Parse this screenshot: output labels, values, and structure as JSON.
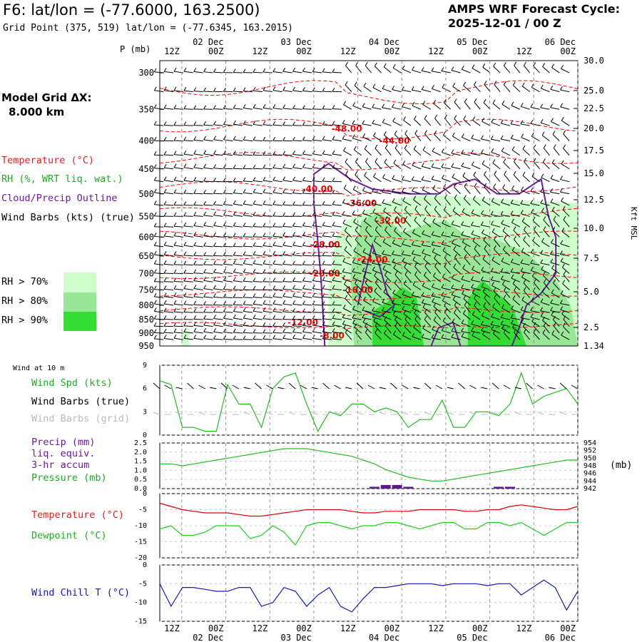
{
  "header": {
    "title": "F6:  lat/lon = (-77.6000, 163.2500)",
    "subtitle": "Grid Point (375, 519) lat/lon = (-77.6345, 163.2015)",
    "cycle_line1": "AMPS WRF Forecast Cycle:",
    "cycle_line2": "2025-12-01 / 00  Z"
  },
  "model_grid": {
    "label": "Model Grid ΔX:",
    "value": "8.000 km"
  },
  "legend": {
    "temperature": "Temperature (°C)",
    "rh": "RH (%, WRT liq. wat.)",
    "cloud": "Cloud/Precip Outline",
    "wind": "Wind Barbs (kts) (true)",
    "rh70": "RH > 70%",
    "rh80": "RH > 80%",
    "rh90": "RH > 90%"
  },
  "time_axis": {
    "top_hours": [
      "12Z",
      "00Z",
      "12Z",
      "00Z",
      "12Z",
      "00Z",
      "12Z",
      "00Z",
      "12Z",
      "00Z"
    ],
    "top_dates": [
      "02 Dec",
      "03 Dec",
      "04 Dec",
      "05 Dec",
      "06 Dec"
    ],
    "bottom_hours": [
      "12Z",
      "00Z",
      "12Z",
      "00Z",
      "12Z",
      "00Z",
      "12Z",
      "00Z",
      "12Z",
      "00Z"
    ],
    "bottom_dates": [
      "02 Dec",
      "03 Dec",
      "04 Dec",
      "05 Dec",
      "06 Dec"
    ]
  },
  "colors": {
    "temperature": "#ff0000",
    "rh70": "#ccffcc",
    "rh80": "#99e699",
    "rh90": "#33dd33",
    "cloud": "#6a1b9a",
    "wind_speed": "#22bb22",
    "precip": "#5b1a8a",
    "pressure": "#22bb22",
    "temp_line": "#dd0000",
    "dewpoint": "#22cc22",
    "wind_chill": "#1a1aaa",
    "grid_barbs": "#bbbbbb"
  },
  "chart_data": [
    {
      "type": "heatmap",
      "title": "",
      "ylabel": "P (mb)",
      "y2label": "Kft MSL",
      "y_ticks": [
        "300",
        "350",
        "400",
        "450",
        "500",
        "550",
        "600",
        "650",
        "700",
        "750",
        "800",
        "850",
        "900",
        "950"
      ],
      "y2_ticks": [
        "30.0",
        "25.0",
        "22.5",
        "20.0",
        "17.5",
        "15.0",
        "12.5",
        "10.0",
        "7.5",
        "5.0",
        "2.5",
        "1.34"
      ],
      "ylim": [
        950,
        285
      ],
      "x_hours_start": "2025-12-01 06Z",
      "x_hours_end": "2025-12-06 00Z",
      "temperature_contour_labels": [
        "-48.00",
        "-44.00",
        "-40.00",
        "-36.00",
        "-32.00",
        "-28.00",
        "-24.00",
        "-20.00",
        "-16.00",
        "-12.00",
        "-8.00"
      ],
      "temperature_contour_levels": [
        -48,
        -44,
        -40,
        -36,
        -32,
        -28,
        -24,
        -20,
        -16,
        -12,
        -8
      ]
    },
    {
      "type": "line",
      "title": "Wind at 10 m",
      "series": [
        {
          "name": "Wind Spd (kts)",
          "values": [
            7,
            6.5,
            1,
            1,
            0.5,
            0.5,
            6.5,
            4,
            4,
            1,
            6,
            7.5,
            8,
            4,
            0.5,
            3,
            2.5,
            4,
            4,
            3,
            3.5,
            3,
            1,
            2,
            2,
            4.5,
            1,
            1,
            3,
            3,
            2.5,
            4,
            8,
            4,
            5,
            5.5,
            6,
            4
          ]
        }
      ],
      "legend": [
        "Wind Spd (kts)",
        "Wind Barbs (true)",
        "Wind Barbs (grid)"
      ],
      "ylim": [
        0,
        9
      ],
      "y_ticks": [
        "0",
        "3",
        "6",
        "9"
      ]
    },
    {
      "type": "line",
      "series": [
        {
          "name": "Pressure (mb)",
          "values": [
            948.5,
            948.5,
            948,
            948.5,
            949,
            949.5,
            950,
            950.5,
            951,
            951.5,
            952,
            952.5,
            952.5,
            952.5,
            952,
            951.5,
            951,
            950.5,
            949.5,
            948.5,
            947,
            946,
            945,
            944.5,
            944,
            944,
            944.5,
            945,
            945.5,
            946,
            946.5,
            947,
            947.5,
            948,
            948.5,
            949,
            949.5,
            949.5
          ]
        },
        {
          "name": "Precip (mm) liq. equiv. 3-hr accum",
          "values": [
            0,
            0,
            0,
            0,
            0,
            0,
            0,
            0,
            0,
            0,
            0,
            0,
            0,
            0,
            0,
            0,
            0,
            0,
            0,
            0.1,
            0.2,
            0.2,
            0.1,
            0,
            0,
            0,
            0,
            0,
            0,
            0,
            0.1,
            0.1,
            0,
            0,
            0,
            0,
            0,
            0
          ]
        }
      ],
      "legend": [
        "Precip (mm)",
        "liq. equiv.",
        "3-hr accum",
        "Pressure (mb)"
      ],
      "y_ticks_left": [
        "0.0",
        "0.5",
        "1.0",
        "1.5",
        "2.0",
        "2.5"
      ],
      "y_ticks_right": [
        "942",
        "944",
        "946",
        "948",
        "950",
        "952",
        "954"
      ],
      "y2label": "(mb)",
      "ylim": [
        0,
        2.5
      ],
      "y2lim": [
        942,
        954
      ]
    },
    {
      "type": "line",
      "series": [
        {
          "name": "Temperature (°C)",
          "values": [
            -3,
            -4,
            -5,
            -5.5,
            -6,
            -6,
            -6,
            -6.5,
            -7,
            -7,
            -6.5,
            -6,
            -5.5,
            -5,
            -5,
            -5,
            -5,
            -5.5,
            -6,
            -6,
            -5.5,
            -5.5,
            -5.5,
            -5,
            -5,
            -5,
            -5,
            -5.5,
            -5.5,
            -5,
            -5,
            -4,
            -3.5,
            -4,
            -4.5,
            -5,
            -5,
            -4
          ]
        },
        {
          "name": "Dewpoint (°C)",
          "values": [
            -11,
            -10,
            -13,
            -13,
            -12,
            -10,
            -10,
            -10,
            -14,
            -13,
            -10,
            -12,
            -16,
            -10,
            -9,
            -9,
            -10,
            -11,
            -10,
            -10,
            -9,
            -9,
            -10,
            -11,
            -10,
            -9,
            -9,
            -11,
            -11,
            -9,
            -9,
            -10,
            -9,
            -11,
            -13,
            -11,
            -9,
            -9
          ]
        }
      ],
      "legend": [
        "Temperature (°C)",
        "Dewpoint (°C)"
      ],
      "ylim": [
        -20,
        0
      ],
      "y_ticks": [
        "0",
        "-5",
        "-10",
        "-15",
        "-20"
      ]
    },
    {
      "type": "line",
      "series": [
        {
          "name": "Wind Chill T (°C)",
          "values": [
            -5,
            -11,
            -6,
            -6,
            -6.5,
            -7,
            -7,
            -6,
            -6,
            -11,
            -10,
            -6,
            -7,
            -11,
            -8,
            -6,
            -11,
            -12.5,
            -9,
            -6,
            -6,
            -5.5,
            -5,
            -5,
            -5,
            -5.5,
            -5,
            -5,
            -5,
            -5.5,
            -5,
            -5,
            -8,
            -6,
            -4,
            -6,
            -12,
            -7
          ]
        }
      ],
      "legend": [
        "Wind Chill T (°C)"
      ],
      "ylim": [
        -15,
        0
      ],
      "y_ticks": [
        "0",
        "-5",
        "-10",
        "-15"
      ]
    }
  ]
}
